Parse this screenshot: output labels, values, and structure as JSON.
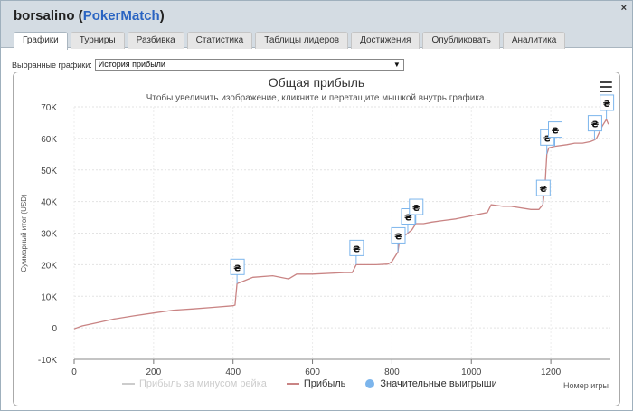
{
  "window": {
    "player": "borsalino",
    "site": "PokerMatch",
    "close_glyph": "×"
  },
  "tabs": [
    {
      "label": "Графики",
      "active": true
    },
    {
      "label": "Турниры"
    },
    {
      "label": "Разбивка"
    },
    {
      "label": "Статистика"
    },
    {
      "label": "Таблицы лидеров"
    },
    {
      "label": "Достижения"
    },
    {
      "label": "Опубликовать"
    },
    {
      "label": "Аналитика"
    }
  ],
  "selector": {
    "label": "Выбранные графики:",
    "value": "История прибыли"
  },
  "chart_data": {
    "type": "line",
    "title": "Общая прибыль",
    "subtitle": "Чтобы увеличить изображение, кликните и перетащите мышкой внутрь графика.",
    "ylabel": "Суммарный итог (USD)",
    "xlabel": "Номер игры",
    "xlim": [
      0,
      1350
    ],
    "ylim": [
      -10000,
      70000
    ],
    "x_ticks": [
      "0",
      "200",
      "400",
      "600",
      "800",
      "1000",
      "1200"
    ],
    "y_ticks": [
      "70K",
      "60K",
      "50K",
      "40K",
      "30K",
      "20K",
      "10K",
      "0",
      "-10K"
    ],
    "grid": true,
    "legend_position": "bottom",
    "series": [
      {
        "name": "Прибыль за минусом рейка",
        "color": "#cccccc",
        "visible": false,
        "x": [],
        "y": []
      },
      {
        "name": "Прибыль",
        "color": "#c98484",
        "x": [
          0,
          20,
          60,
          100,
          150,
          200,
          250,
          300,
          350,
          400,
          405,
          410,
          420,
          450,
          500,
          540,
          560,
          600,
          680,
          700,
          710,
          760,
          790,
          800,
          805,
          815,
          820,
          830,
          840,
          850,
          860,
          880,
          900,
          930,
          960,
          1000,
          1040,
          1050,
          1080,
          1100,
          1150,
          1170,
          1180,
          1185,
          1190,
          1195,
          1210,
          1240,
          1260,
          1280,
          1300,
          1310,
          1315,
          1330,
          1340,
          1345
        ],
        "y": [
          -300,
          600,
          1700,
          2800,
          3800,
          4700,
          5600,
          6000,
          6500,
          7000,
          7200,
          14000,
          14500,
          16000,
          16500,
          15500,
          17000,
          17000,
          17500,
          17500,
          20000,
          20000,
          20200,
          21000,
          22000,
          24000,
          28500,
          29000,
          30000,
          31000,
          33000,
          33000,
          33500,
          34000,
          34500,
          35500,
          36500,
          39000,
          38500,
          38500,
          37500,
          37500,
          39000,
          44000,
          55000,
          57000,
          57500,
          58000,
          58500,
          58500,
          59000,
          59500,
          60000,
          64000,
          66000,
          64500
        ]
      }
    ],
    "markers_series": {
      "name": "Значительные выигрыши",
      "color": "#7cb5ec",
      "glyph": "₴",
      "points": [
        {
          "x": 410,
          "y": 14000
        },
        {
          "x": 710,
          "y": 20000
        },
        {
          "x": 815,
          "y": 24000
        },
        {
          "x": 840,
          "y": 30000
        },
        {
          "x": 860,
          "y": 33000
        },
        {
          "x": 1180,
          "y": 39000
        },
        {
          "x": 1190,
          "y": 55000
        },
        {
          "x": 1210,
          "y": 57500
        },
        {
          "x": 1310,
          "y": 59500
        },
        {
          "x": 1340,
          "y": 66000
        }
      ]
    }
  }
}
